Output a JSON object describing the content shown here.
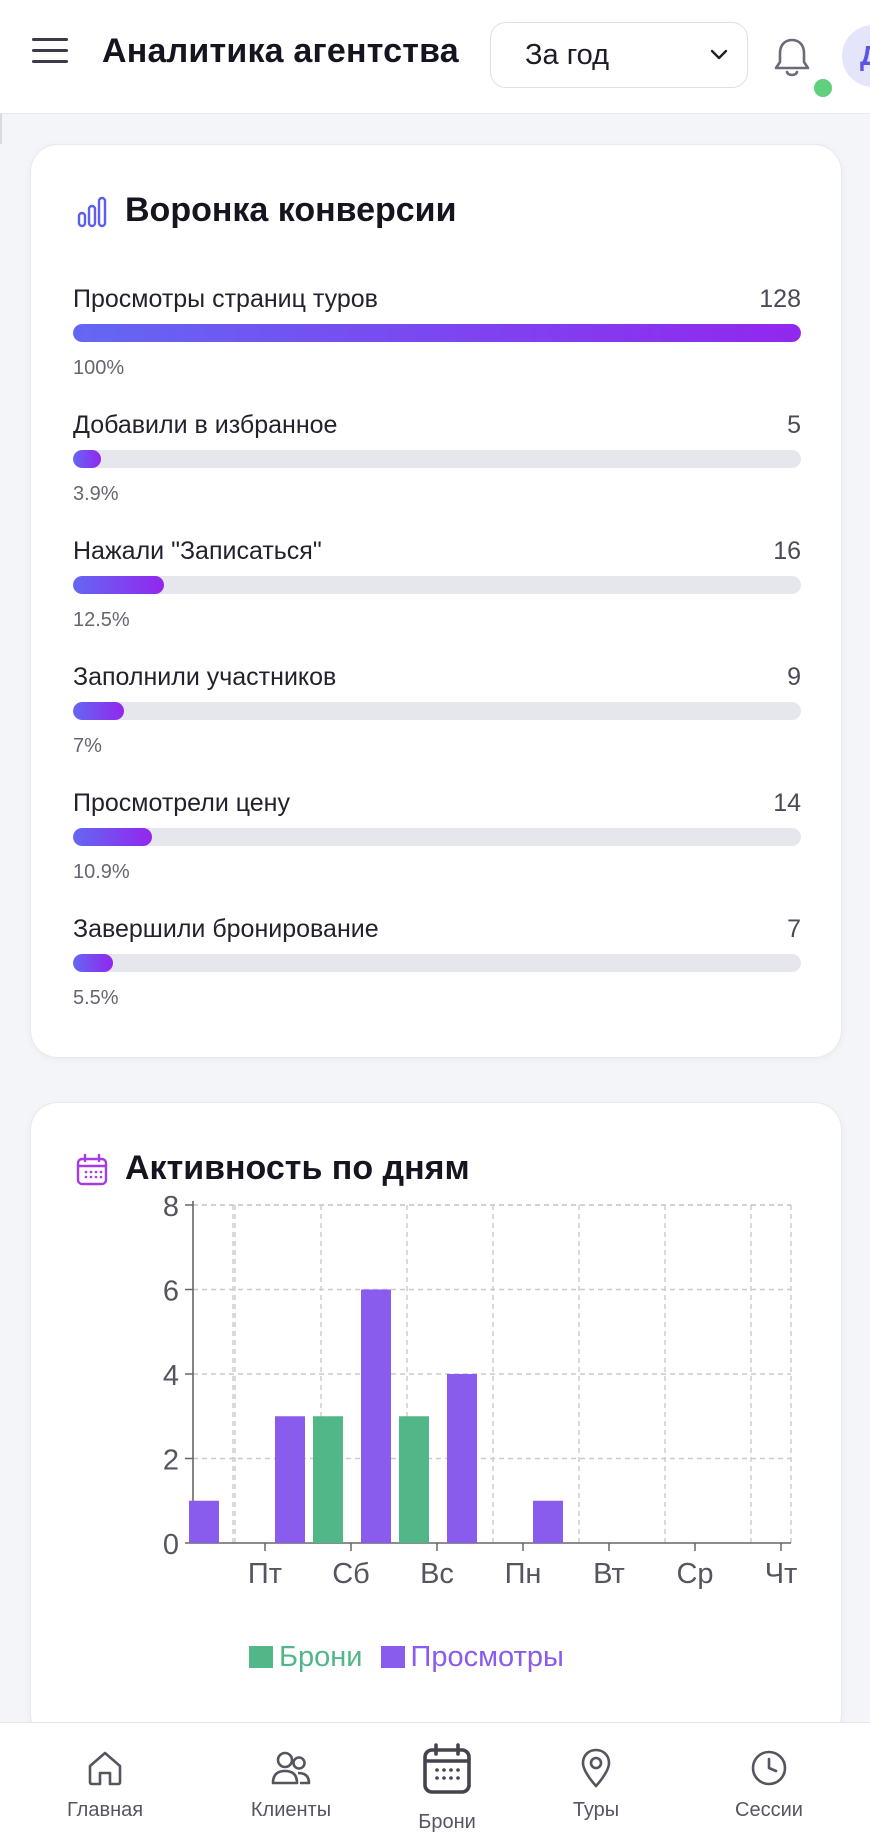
{
  "header": {
    "title": "Аналитика агентства",
    "period": "За год",
    "avatar_letter": "Д"
  },
  "funnel": {
    "title": "Воронка конверсии",
    "rows": [
      {
        "label": "Просмотры страниц туров",
        "count": "128",
        "percent": "100%",
        "fraction": 1.0
      },
      {
        "label": "Добавили в избранное",
        "count": "5",
        "percent": "3.9%",
        "fraction": 0.039
      },
      {
        "label": "Нажали \"Записаться\"",
        "count": "16",
        "percent": "12.5%",
        "fraction": 0.125
      },
      {
        "label": "Заполнили участников",
        "count": "9",
        "percent": "7%",
        "fraction": 0.07
      },
      {
        "label": "Просмотрели цену",
        "count": "14",
        "percent": "10.9%",
        "fraction": 0.109
      },
      {
        "label": "Завершили бронирование",
        "count": "7",
        "percent": "5.5%",
        "fraction": 0.055
      }
    ]
  },
  "activity": {
    "title": "Активность по дням"
  },
  "chart_data": {
    "type": "bar",
    "categories": [
      "Пт",
      "Сб",
      "Вс",
      "Пн",
      "Вт",
      "Ср",
      "Чт"
    ],
    "series": [
      {
        "name": "Просмотры",
        "values": [
          1,
          3,
          6,
          4,
          1,
          0,
          0
        ],
        "color": "#8a5ced"
      },
      {
        "name": "Брони",
        "values": [
          0,
          3,
          3,
          0,
          0,
          0,
          0
        ],
        "color": "#52b788"
      }
    ],
    "legend_order": [
      "Брони",
      "Просмотры"
    ],
    "ylim": [
      0,
      8
    ],
    "yticks": [
      "0",
      "2",
      "4",
      "6",
      "8"
    ],
    "grid": true,
    "legend": "bottom-center"
  },
  "nav": {
    "items": [
      {
        "label": "Главная",
        "icon": "home-icon"
      },
      {
        "label": "Клиенты",
        "icon": "users-icon"
      },
      {
        "label": "Брони",
        "icon": "calendar-icon",
        "active": true
      },
      {
        "label": "Туры",
        "icon": "map-pin-icon"
      },
      {
        "label": "Сессии",
        "icon": "clock-icon"
      }
    ]
  },
  "colors": {
    "accent": "#6467f2",
    "accent_end": "#9227ee",
    "views": "#8a5ced",
    "bookings": "#52b788",
    "online": "#5fd07c"
  }
}
